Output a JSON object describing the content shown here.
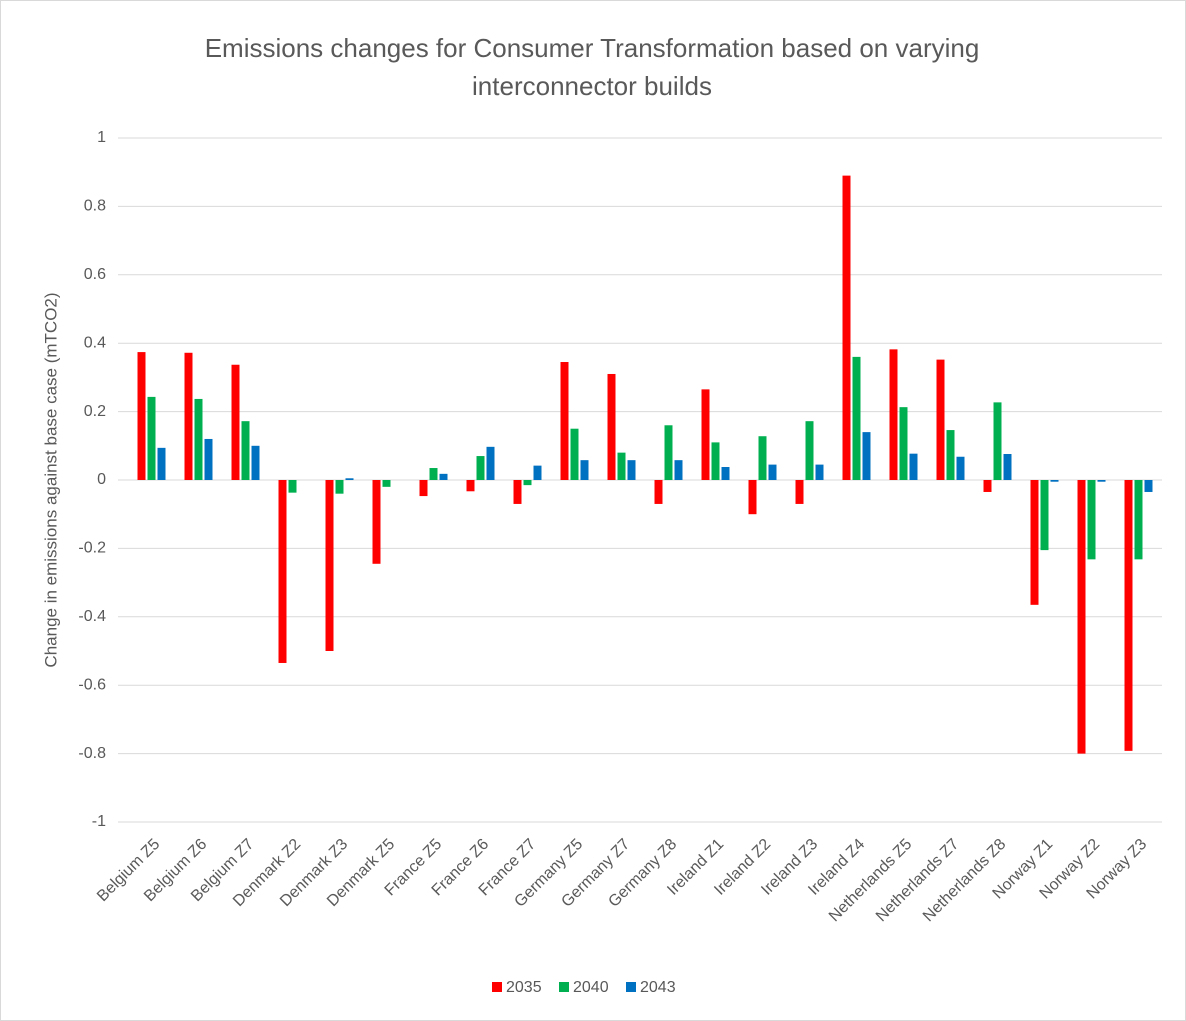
{
  "chart_data": {
    "type": "bar",
    "title": "Emissions changes for Consumer Transformation based on varying interconnector builds",
    "y_label": "Change in emissions against base case (mTCO2)",
    "categories": [
      "Belgium Z5",
      "Belgium Z6",
      "Belgium Z7",
      "Denmark Z2",
      "Denmark Z3",
      "Denmark Z5",
      "France Z5",
      "France Z6",
      "France Z7",
      "Germany Z5",
      "Germany Z7",
      "Germany Z8",
      "Ireland Z1",
      "Ireland Z2",
      "Ireland Z3",
      "Ireland Z4",
      "Netherlands Z5",
      "Netherlands Z7",
      "Netherlands Z8",
      "Norway Z1",
      "Norway Z2",
      "Norway Z3"
    ],
    "series": [
      {
        "name": "2035",
        "color": "#ff0000",
        "values": [
          0.374,
          0.372,
          0.337,
          -0.535,
          -0.5,
          -0.245,
          -0.047,
          -0.033,
          -0.07,
          0.345,
          0.31,
          -0.07,
          0.265,
          -0.1,
          -0.07,
          0.89,
          0.382,
          0.352,
          -0.035,
          -0.365,
          -0.8,
          -0.792
        ]
      },
      {
        "name": "2040",
        "color": "#00b050",
        "values": [
          0.243,
          0.237,
          0.172,
          -0.037,
          -0.04,
          -0.02,
          0.035,
          0.07,
          -0.015,
          0.15,
          0.08,
          0.16,
          0.11,
          0.128,
          0.172,
          0.36,
          0.213,
          0.146,
          0.227,
          -0.205,
          -0.232,
          -0.232
        ]
      },
      {
        "name": "2043",
        "color": "#0070c0",
        "values": [
          0.094,
          0.12,
          0.1,
          0,
          0.005,
          0,
          0.018,
          0.097,
          0.042,
          0.058,
          0.058,
          0.058,
          0.038,
          0.045,
          0.045,
          0.14,
          0.077,
          0.068,
          0.076,
          -0.005,
          -0.005,
          -0.035
        ]
      }
    ],
    "ylim": [
      -1,
      1
    ],
    "yticks": [
      -1,
      -0.8,
      -0.6,
      -0.4,
      -0.2,
      0,
      0.2,
      0.4,
      0.6,
      0.8,
      1
    ],
    "grid": true,
    "legend": "bottom"
  }
}
